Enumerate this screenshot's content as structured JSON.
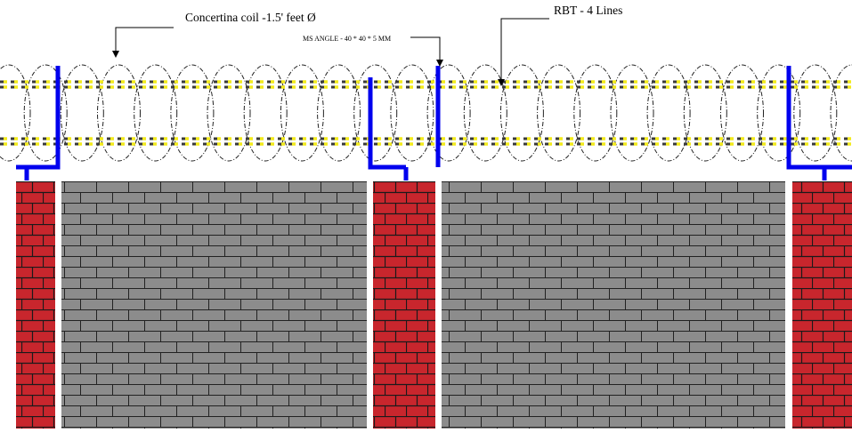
{
  "labels": {
    "concertina": "Concertina coil -1.5' feet Ø",
    "angle": "MS ANGLE - 40 * 40 * 5 MM",
    "rbt": "RBT - 4 Lines"
  },
  "colors": {
    "background": "#ffffff",
    "angle_blue": "#0000ee",
    "brick_red": "#c8262d",
    "block_grey": "#8c8c8c",
    "mortar": "#1a1a1a",
    "rbt_dash_yellow": "#f2ea1c",
    "rbt_dash_dark": "#3a3a3a",
    "coil_stroke": "#222222"
  },
  "components": {
    "coil_count": 24,
    "rbt_lines": 4,
    "pillars": 3,
    "wall_panels": 2
  }
}
